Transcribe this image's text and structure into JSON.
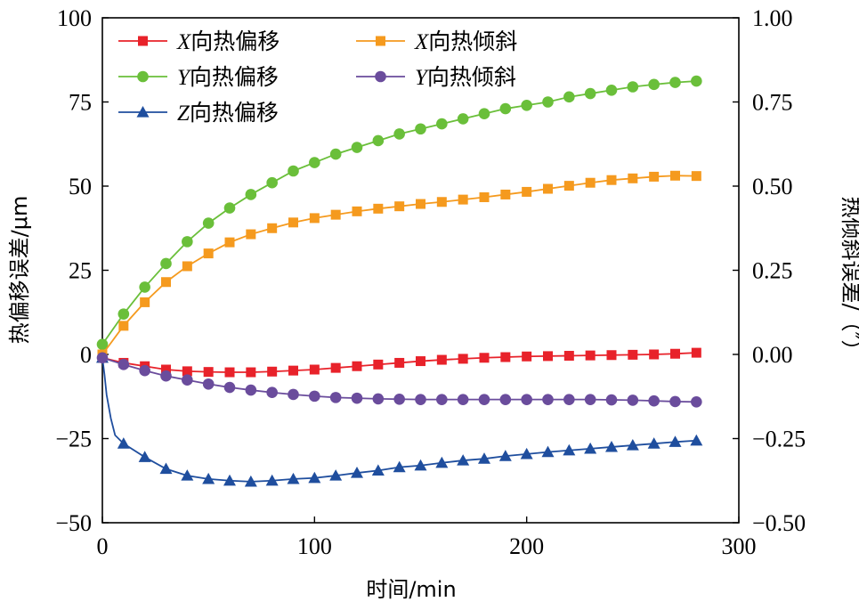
{
  "chart_data": {
    "type": "line",
    "xlabel": "时间/min",
    "ylabel_left": "热偏移误差/μm",
    "ylabel_right": "热倾斜误差/（″）",
    "xlim": [
      0,
      300
    ],
    "ylim_left": [
      -50,
      100
    ],
    "ylim_right": [
      -0.5,
      1.0
    ],
    "x_ticks": [
      "0",
      "100",
      "200",
      "300"
    ],
    "y_left_ticks": [
      "−50",
      "−25",
      "0",
      "25",
      "50",
      "75",
      "100"
    ],
    "y_right_ticks": [
      "−0.50",
      "−0.25",
      "0.00",
      "0.25",
      "0.50",
      "0.75",
      "1.00"
    ],
    "grid": false,
    "legend_position": "top-left",
    "series": [
      {
        "name_italic": "X",
        "name_rest": "向热偏移",
        "axis": "left",
        "color": "#e8222a",
        "marker": "square",
        "x": [
          0,
          10,
          20,
          30,
          40,
          50,
          60,
          70,
          80,
          90,
          100,
          110,
          120,
          130,
          140,
          150,
          160,
          170,
          180,
          190,
          200,
          210,
          220,
          230,
          240,
          250,
          260,
          270,
          280
        ],
        "y": [
          -1,
          -2.5,
          -3.5,
          -4.5,
          -5,
          -5.2,
          -5.3,
          -5.3,
          -5.1,
          -4.8,
          -4.5,
          -4,
          -3.5,
          -3,
          -2.5,
          -2,
          -1.6,
          -1.3,
          -1,
          -0.8,
          -0.6,
          -0.5,
          -0.4,
          -0.3,
          -0.2,
          -0.1,
          0,
          0.2,
          0.5
        ]
      },
      {
        "name_italic": "Y",
        "name_rest": "向热偏移",
        "axis": "left",
        "color": "#6abf3a",
        "marker": "circle",
        "x": [
          0,
          10,
          20,
          30,
          40,
          50,
          60,
          70,
          80,
          90,
          100,
          110,
          120,
          130,
          140,
          150,
          160,
          170,
          180,
          190,
          200,
          210,
          220,
          230,
          240,
          250,
          260,
          270,
          280
        ],
        "y": [
          3,
          12,
          20,
          27,
          33.5,
          39,
          43.5,
          47.5,
          51,
          54.5,
          57,
          59.5,
          61.5,
          63.5,
          65.5,
          67,
          68.5,
          70,
          71.5,
          73,
          74,
          75,
          76.5,
          77.5,
          78.5,
          79.5,
          80.2,
          80.8,
          81.2
        ]
      },
      {
        "name_italic": "Z",
        "name_rest": "向热偏移",
        "axis": "left",
        "color": "#1f4e9e",
        "marker": "triangle",
        "x": [
          0,
          1,
          2,
          4,
          6,
          10,
          20,
          30,
          40,
          50,
          60,
          70,
          80,
          90,
          100,
          110,
          120,
          130,
          140,
          150,
          160,
          170,
          180,
          190,
          200,
          210,
          220,
          230,
          240,
          250,
          260,
          270,
          280
        ],
        "y": [
          -1,
          -6,
          -12,
          -19,
          -24,
          -26.5,
          -30.5,
          -34,
          -36,
          -37,
          -37.5,
          -37.8,
          -37.5,
          -37,
          -36.7,
          -36,
          -35.2,
          -34.5,
          -33.5,
          -33,
          -32.2,
          -31.5,
          -31,
          -30.2,
          -29.6,
          -29,
          -28.5,
          -28,
          -27.5,
          -27,
          -26.5,
          -26,
          -25.6
        ]
      },
      {
        "name_italic": "X",
        "name_rest": "向热倾斜",
        "axis": "right",
        "color": "#f59a1e",
        "marker": "square",
        "x": [
          0,
          10,
          20,
          30,
          40,
          50,
          60,
          70,
          80,
          90,
          100,
          110,
          120,
          130,
          140,
          150,
          160,
          170,
          180,
          190,
          200,
          210,
          220,
          230,
          240,
          250,
          260,
          270,
          280
        ],
        "y": [
          0.0,
          0.085,
          0.155,
          0.215,
          0.262,
          0.3,
          0.333,
          0.357,
          0.375,
          0.392,
          0.405,
          0.415,
          0.425,
          0.433,
          0.44,
          0.447,
          0.453,
          0.46,
          0.467,
          0.475,
          0.483,
          0.492,
          0.501,
          0.51,
          0.518,
          0.523,
          0.528,
          0.531,
          0.53
        ]
      },
      {
        "name_italic": "Y",
        "name_rest": "向热倾斜",
        "axis": "right",
        "color": "#6a4c9c",
        "marker": "circle",
        "x": [
          0,
          10,
          20,
          30,
          40,
          50,
          60,
          70,
          80,
          90,
          100,
          110,
          120,
          130,
          140,
          150,
          160,
          170,
          180,
          190,
          200,
          210,
          220,
          230,
          240,
          250,
          260,
          270,
          280
        ],
        "y": [
          -0.01,
          -0.03,
          -0.048,
          -0.064,
          -0.076,
          -0.088,
          -0.098,
          -0.106,
          -0.113,
          -0.119,
          -0.124,
          -0.128,
          -0.13,
          -0.132,
          -0.133,
          -0.134,
          -0.134,
          -0.134,
          -0.134,
          -0.134,
          -0.134,
          -0.134,
          -0.134,
          -0.134,
          -0.135,
          -0.136,
          -0.138,
          -0.14,
          -0.141
        ]
      }
    ]
  }
}
